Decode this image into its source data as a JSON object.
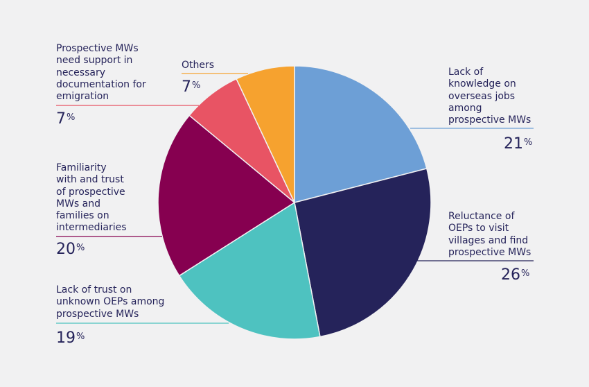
{
  "chart_data": {
    "type": "pie",
    "slices": [
      {
        "label": "Lack of\nknowledge on\noverseas jobs\namong\nprospective MWs",
        "value": 21,
        "color": "#6d9fd6"
      },
      {
        "label": "Reluctance of\nOEPs to visit\nvillages and find\nprospective MWs",
        "value": 26,
        "color": "#25235a"
      },
      {
        "label": "Lack of trust on\nunknown OEPs among\nprospective MWs",
        "value": 19,
        "color": "#4ec2c0"
      },
      {
        "label": "Familiarity\nwith and trust\nof prospective\nMWs and\nfamilies on\nintermediaries",
        "value": 20,
        "color": "#860050"
      },
      {
        "label": "Prospective MWs\nneed support in\nnecessary\ndocumentation for\nemigration",
        "value": 7,
        "color": "#e85464"
      },
      {
        "label": "Others",
        "value": 7,
        "color": "#f6a22f"
      }
    ],
    "unit": "%",
    "start_angle": "12 o'clock",
    "direction": "clockwise"
  }
}
